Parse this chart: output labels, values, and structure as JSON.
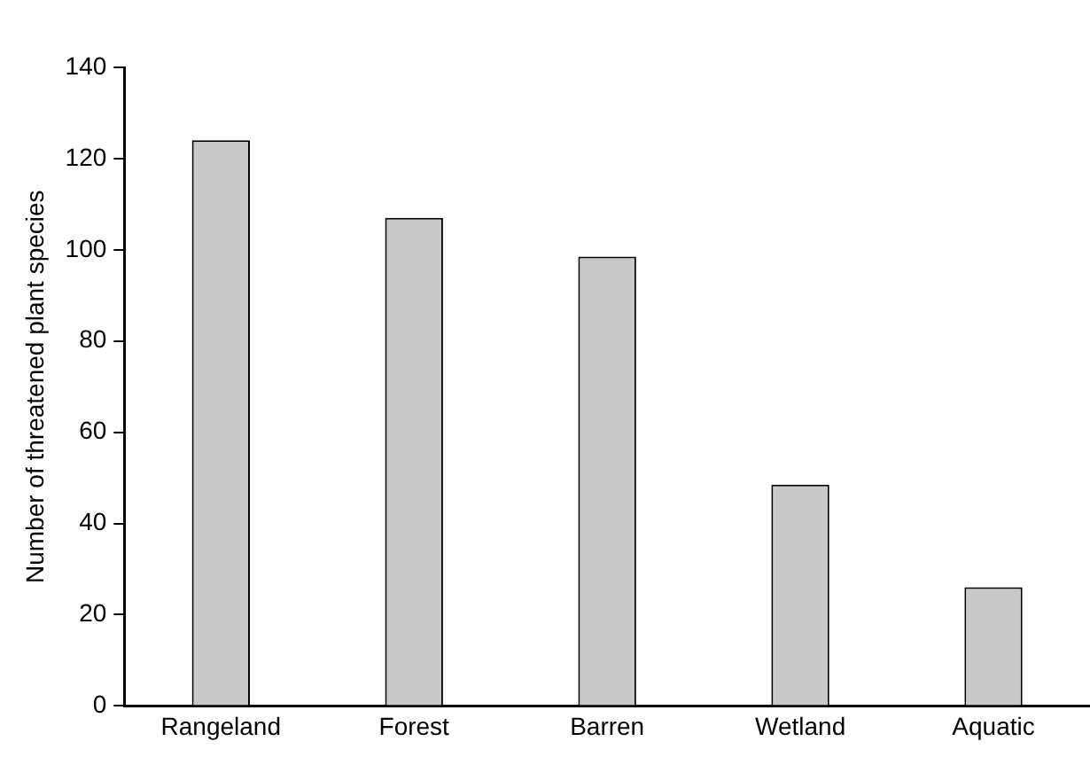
{
  "chart_data": {
    "type": "bar",
    "ylabel": "Number of threatened plant species",
    "categories": [
      "Rangeland",
      "Forest",
      "Barren",
      "Wetland",
      "Aquatic"
    ],
    "values": [
      124,
      107,
      98.5,
      48.5,
      26
    ],
    "color": "#c8c8c8",
    "ylim": [
      0,
      140
    ],
    "yticks": [
      0,
      20,
      40,
      60,
      80,
      100,
      120,
      140
    ],
    "grid": false,
    "legend": false
  }
}
